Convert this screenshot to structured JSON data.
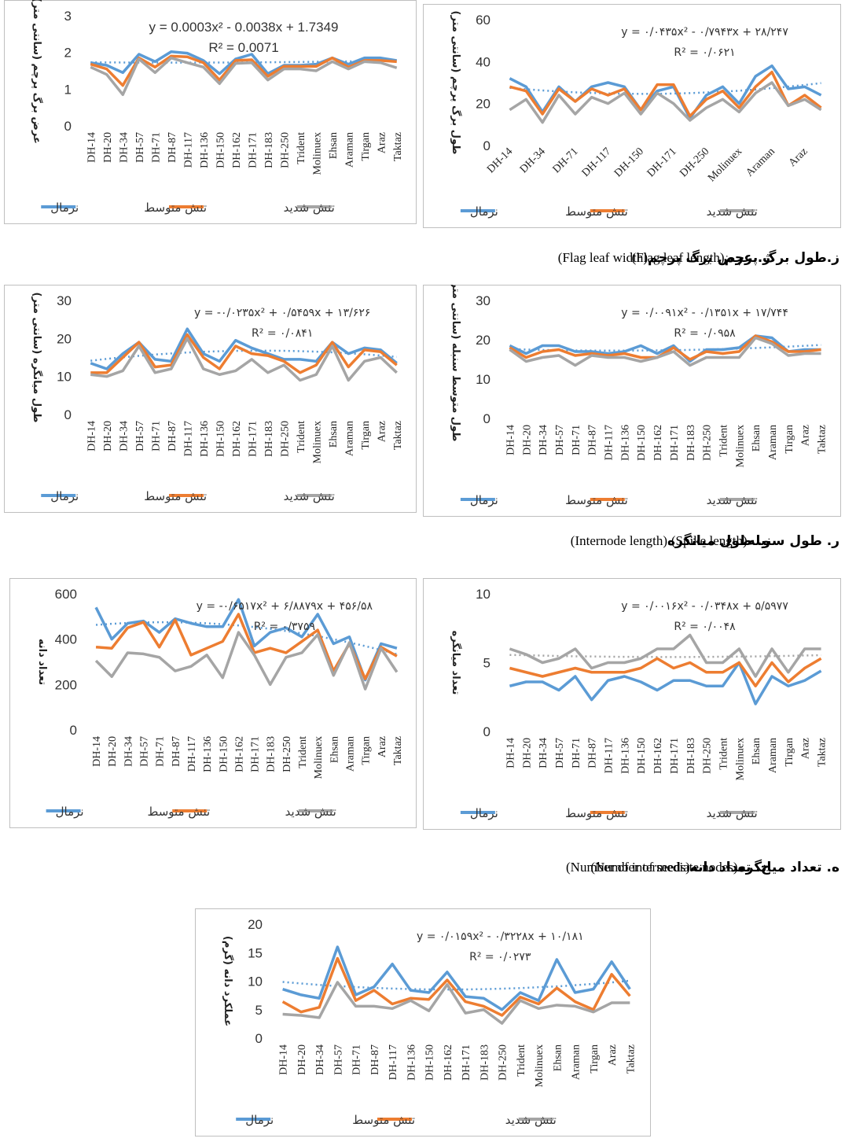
{
  "chart_data": [
    {
      "type": "line",
      "caption": "ژ. عرض برگ پرچم",
      "caption_en": "(Flag leaf width)",
      "y_label": "عرض برگ پرچم (سانتی متر)",
      "equation": "y = 0.0003x² - 0.0038x + 1.7349",
      "r_squared": "R² = 0.0071",
      "categories": [
        "DH-14",
        "DH-20",
        "DH-34",
        "DH-57",
        "DH-71",
        "DH-87",
        "DH-117",
        "DH-136",
        "DH-150",
        "DH-162",
        "DH-171",
        "DH-183",
        "DH-250",
        "Trident",
        "Molinuex",
        "Ehsan",
        "Araman",
        "Tirgan",
        "Araz",
        "Taktaz"
      ],
      "ylim": [
        0,
        3
      ],
      "yticks": [
        0,
        1,
        2,
        3
      ],
      "series": [
        {
          "name": "نرمال",
          "color": "#5b9bd5",
          "values": [
            1.72,
            1.65,
            1.45,
            1.95,
            1.75,
            2.02,
            1.98,
            1.78,
            1.42,
            1.82,
            1.95,
            1.42,
            1.65,
            1.65,
            1.68,
            1.85,
            1.68,
            1.85,
            1.85,
            1.78
          ]
        },
        {
          "name": "تنش متوسط",
          "color": "#ed7d31",
          "values": [
            1.68,
            1.55,
            1.1,
            1.85,
            1.6,
            1.9,
            1.88,
            1.72,
            1.25,
            1.78,
            1.8,
            1.35,
            1.62,
            1.62,
            1.62,
            1.85,
            1.6,
            1.78,
            1.78,
            1.75
          ]
        },
        {
          "name": "تنش شدید",
          "color": "#a5a5a5",
          "values": [
            1.6,
            1.4,
            0.85,
            1.82,
            1.45,
            1.85,
            1.72,
            1.6,
            1.15,
            1.7,
            1.72,
            1.25,
            1.55,
            1.55,
            1.5,
            1.75,
            1.55,
            1.75,
            1.72,
            1.58
          ]
        }
      ],
      "trend": {
        "color": "#5b9bd5",
        "values": [
          1.731,
          1.728,
          1.726,
          1.724,
          1.723,
          1.723,
          1.723,
          1.724,
          1.725,
          1.727,
          1.73,
          1.733,
          1.736,
          1.74,
          1.745,
          1.75,
          1.756,
          1.762,
          1.77,
          1.779
        ]
      }
    },
    {
      "type": "line",
      "caption": "ز.طول برگ پرچم",
      "caption_en": "(Flag leaf length)",
      "y_label": "طول برگ پرچم (سانتی متر)",
      "label_angle": -45,
      "equation": "y = ۰/۰۴۳۵x² - ۰/۷۹۴۳x + ۲۸/۲۴۷",
      "r_squared": "R² = ۰/۰۶۲۱",
      "categories": [
        "DH-14",
        null,
        "DH-34",
        null,
        "DH-71",
        null,
        "DH-117",
        null,
        "DH-150",
        null,
        "DH-171",
        null,
        "DH-250",
        null,
        "Molinuex",
        null,
        "Araman",
        null,
        "Araz",
        null
      ],
      "ylim": [
        0,
        60
      ],
      "yticks": [
        0,
        20,
        40,
        60
      ],
      "series": [
        {
          "name": "نرمال",
          "color": "#5b9bd5",
          "values": [
            32,
            28,
            16,
            28,
            21,
            28,
            30,
            28,
            17,
            26,
            28,
            13,
            24,
            28,
            20,
            33,
            38,
            27,
            28,
            24
          ]
        },
        {
          "name": "تنش متوسط",
          "color": "#ed7d31",
          "values": [
            28,
            26,
            15,
            27,
            21,
            27,
            24,
            27,
            17,
            29,
            29,
            14,
            22,
            26,
            18,
            28,
            35,
            19,
            24,
            18
          ]
        },
        {
          "name": "تنش شدید",
          "color": "#a5a5a5",
          "values": [
            17,
            22,
            11,
            24,
            15,
            23,
            20,
            25,
            15,
            25,
            20,
            12,
            18,
            22,
            16,
            25,
            30,
            19,
            22,
            17
          ]
        }
      ],
      "trend": {
        "color": "#5b9bd5",
        "values": [
          27.5,
          26.83,
          26.26,
          25.77,
          25.36,
          25.05,
          24.82,
          24.68,
          24.62,
          24.65,
          24.77,
          24.98,
          25.28,
          25.66,
          26.13,
          26.69,
          27.34,
          28.09,
          28.86,
          29.76
        ]
      }
    },
    {
      "type": "line",
      "caption": "و. طول میانگره",
      "caption_en": "(Internode length)",
      "y_label": "طول میانگره (سانتی متر)",
      "equation": "y = -۰/۰۲۳۵x² + ۰/۵۴۵۹x + ۱۳/۶۲۶",
      "r_squared": "R² = ۰/۰۸۴۱",
      "categories": [
        "DH-14",
        "DH-20",
        "DH-34",
        "DH-57",
        "DH-71",
        "DH-87",
        "DH-117",
        "DH-136",
        "DH-150",
        "DH-162",
        "DH-171",
        "DH-183",
        "DH-250",
        "Trident",
        "Molinuex",
        "Ehsan",
        "Araman",
        "Tirgan",
        "Araz",
        "Taktaz"
      ],
      "ylim": [
        0,
        30
      ],
      "yticks": [
        0,
        10,
        20,
        30
      ],
      "series": [
        {
          "name": "نرمال",
          "color": "#5b9bd5",
          "values": [
            13.5,
            12,
            16,
            19,
            14.5,
            14,
            22.5,
            16,
            14,
            19.5,
            17.5,
            16,
            14.5,
            14.5,
            14,
            19,
            16,
            17.5,
            17,
            13.5
          ]
        },
        {
          "name": "تنش متوسط",
          "color": "#ed7d31",
          "values": [
            11,
            11,
            15,
            19,
            12.5,
            13,
            21,
            15,
            12,
            18,
            16,
            15.5,
            14,
            11,
            13,
            19,
            12.5,
            17,
            16.5,
            13
          ]
        },
        {
          "name": "تنش شدید",
          "color": "#a5a5a5",
          "values": [
            10.5,
            10,
            11.5,
            18,
            11,
            12,
            20,
            12,
            10.5,
            11.5,
            14.5,
            11,
            13,
            9,
            10.5,
            18,
            9,
            14,
            15,
            11
          ]
        }
      ],
      "trend": {
        "color": "#5b9bd5",
        "values": [
          14.15,
          14.62,
          15.05,
          15.43,
          15.77,
          16.06,
          16.3,
          16.49,
          16.64,
          16.74,
          16.79,
          16.79,
          16.75,
          16.66,
          16.53,
          16.35,
          16.12,
          15.84,
          15.51,
          15.15
        ]
      }
    },
    {
      "type": "line",
      "caption": "ر. طول سنبله",
      "caption_en": "(Spike length)",
      "y_label": "طول متوسط سنبله (سانتی متر)",
      "equation": "y = ۰/۰۰۹۱x² - ۰/۱۳۵۱x + ۱۷/۷۴۴",
      "r_squared": "R² = ۰/۰۹۵۸",
      "categories": [
        "DH-14",
        "DH-20",
        "DH-34",
        "DH-57",
        "DH-71",
        "DH-87",
        "DH-117",
        "DH-136",
        "DH-150",
        "DH-162",
        "DH-171",
        "DH-183",
        "DH-250",
        "Trident",
        "Molinuex",
        "Ehsan",
        "Araman",
        "Tirgan",
        "Araz",
        "Taktaz"
      ],
      "ylim": [
        0,
        30
      ],
      "yticks": [
        0,
        10,
        20,
        30
      ],
      "series": [
        {
          "name": "نرمال",
          "color": "#5b9bd5",
          "values": [
            18.5,
            16.5,
            18.5,
            18.5,
            17,
            17,
            16.5,
            17,
            18.5,
            16.5,
            18.5,
            14.5,
            17.5,
            17.5,
            18,
            21,
            20.5,
            17,
            17.5,
            17.5
          ]
        },
        {
          "name": "تنش متوسط",
          "color": "#ed7d31",
          "values": [
            18,
            15.5,
            17,
            17.5,
            16,
            16.5,
            16,
            16.5,
            15.5,
            15.5,
            18,
            15,
            17,
            16.5,
            17,
            21,
            19.5,
            17,
            17,
            17.5
          ]
        },
        {
          "name": "تنش شدید",
          "color": "#a5a5a5",
          "values": [
            17.5,
            14.5,
            15.5,
            16,
            13.5,
            16,
            15.5,
            15.5,
            14.5,
            15.5,
            17,
            13.5,
            15.5,
            15.5,
            15.5,
            20.5,
            19,
            16,
            16.5,
            16.5
          ]
        }
      ],
      "trend": {
        "color": "#5b9bd5",
        "values": [
          17.62,
          17.51,
          17.42,
          17.35,
          17.29,
          17.26,
          17.24,
          17.24,
          17.27,
          17.3,
          17.36,
          17.43,
          17.51,
          17.63,
          17.77,
          17.91,
          18.07,
          18.26,
          18.46,
          18.68
        ]
      }
    },
    {
      "type": "line",
      "caption": "ج. تعداد دانه",
      "caption_en": "(Number of seeds)",
      "y_label": "تعداد دانه",
      "equation": "y = -۰/۶۵۱۷x² + ۶/۸۸۷۹x + ۴۵۶/۵۸",
      "r_squared": "R² = ۰/۳۷۵۹",
      "categories": [
        "DH-14",
        "DH-20",
        "DH-34",
        "DH-57",
        "DH-71",
        "DH-87",
        "DH-117",
        "DH-136",
        "DH-150",
        "DH-162",
        "DH-171",
        "DH-183",
        "DH-250",
        "Trident",
        "Molinuex",
        "Ehsan",
        "Araman",
        "Tirgan",
        "Araz",
        "Taktaz"
      ],
      "ylim": [
        0,
        600
      ],
      "yticks": [
        0,
        200,
        400,
        600
      ],
      "series": [
        {
          "name": "نرمال",
          "color": "#5b9bd5",
          "values": [
            540,
            400,
            470,
            480,
            430,
            490,
            470,
            455,
            455,
            575,
            370,
            430,
            450,
            410,
            510,
            380,
            410,
            220,
            380,
            360
          ]
        },
        {
          "name": "تنش متوسط",
          "color": "#ed7d31",
          "values": [
            365,
            360,
            450,
            475,
            365,
            485,
            330,
            360,
            390,
            510,
            340,
            360,
            340,
            390,
            440,
            260,
            380,
            225,
            365,
            325
          ]
        },
        {
          "name": "تنش شدید",
          "color": "#a5a5a5",
          "values": [
            305,
            235,
            340,
            335,
            320,
            260,
            280,
            330,
            230,
            430,
            330,
            200,
            320,
            340,
            420,
            240,
            385,
            180,
            360,
            255
          ]
        }
      ],
      "trend": {
        "color": "#5b9bd5",
        "values": [
          462.8,
          467.7,
          471.4,
          473.7,
          474.7,
          474.4,
          472.9,
          470,
          465.8,
          460.3,
          453.4,
          445.4,
          436,
          425.3,
          413.3,
          400,
          385.3,
          369.4,
          352.2,
          333.7
        ]
      }
    },
    {
      "type": "line",
      "caption": "ه. تعداد میانگره",
      "caption_en": "(Number of intermediate nodes)",
      "y_label": "تعداد میانگره",
      "equation": "y = ۰/۰۰۱۶x² - ۰/۰۳۴۸x + ۵/۵۹۷۷",
      "r_squared": "R² = ۰/۰۰۴۸",
      "categories": [
        "DH-14",
        "DH-20",
        "DH-34",
        "DH-57",
        "DH-71",
        "DH-87",
        "DH-117",
        "DH-136",
        "DH-150",
        "DH-162",
        "DH-171",
        "DH-183",
        "DH-250",
        "Trident",
        "Molinuex",
        "Ehsan",
        "Araman",
        "Tirgan",
        "Araz",
        "Taktaz"
      ],
      "ylim": [
        0,
        10
      ],
      "yticks": [
        0,
        5,
        10
      ],
      "series": [
        {
          "name": "نرمال",
          "color": "#5b9bd5",
          "values": [
            3.3,
            3.6,
            3.6,
            3,
            4,
            2.3,
            3.7,
            4,
            3.6,
            3,
            3.7,
            3.7,
            3.3,
            3.3,
            5,
            2,
            4,
            3.3,
            3.7,
            4.4
          ]
        },
        {
          "name": "تنش متوسط",
          "color": "#ed7d31",
          "values": [
            4.6,
            4.3,
            4,
            4.3,
            4.6,
            4.3,
            4.3,
            4.3,
            4.6,
            5.3,
            4.6,
            5,
            4.3,
            4.3,
            5,
            3.3,
            5,
            3.6,
            4.6,
            5.3
          ]
        },
        {
          "name": "تنش شدید",
          "color": "#a5a5a5",
          "values": [
            6,
            5.6,
            5,
            5.3,
            6,
            4.6,
            5,
            5,
            5.3,
            6,
            6,
            7,
            5,
            5,
            6,
            4,
            6,
            4.3,
            6,
            6
          ]
        }
      ],
      "trend": {
        "color": "#a5a5a5",
        "values": [
          5.56,
          5.54,
          5.51,
          5.48,
          5.46,
          5.45,
          5.43,
          5.42,
          5.42,
          5.41,
          5.41,
          5.41,
          5.42,
          5.43,
          5.44,
          5.45,
          5.47,
          5.49,
          5.52,
          5.54
        ]
      }
    },
    {
      "type": "line",
      "y_label": "عملکرد دانه (گرم)",
      "equation": "y = ۰/۰۱۵۹x² - ۰/۳۲۲۸x + ۱۰/۱۸۱",
      "r_squared": "R² = ۰/۰۲۷۳",
      "categories": [
        "DH-14",
        "DH-20",
        "DH-34",
        "DH-57",
        "DH-71",
        "DH-87",
        "DH-117",
        "DH-136",
        "DH-150",
        "DH-162",
        "DH-171",
        "DH-183",
        "DH-250",
        "Trident",
        "Molinuex",
        "Ehsan",
        "Araman",
        "Tirgan",
        "Araz",
        "Taktaz"
      ],
      "ylim": [
        0,
        20
      ],
      "yticks": [
        0,
        5,
        10,
        15,
        20
      ],
      "series": [
        {
          "name": "نرمال",
          "color": "#5b9bd5",
          "values": [
            8.6,
            7.6,
            7,
            16,
            7.6,
            9,
            13,
            8.4,
            8,
            11.6,
            7.3,
            7,
            5,
            8,
            6.6,
            13.8,
            8,
            8.6,
            13.4,
            8.6
          ]
        },
        {
          "name": "تنش متوسط",
          "color": "#ed7d31",
          "values": [
            6.4,
            4.6,
            5.4,
            14,
            6.6,
            8.4,
            6,
            7,
            6.8,
            10.2,
            6.4,
            5.6,
            4,
            7.2,
            6,
            8.8,
            6.4,
            5,
            11.2,
            7.4
          ]
        },
        {
          "name": "تنش شدید",
          "color": "#a5a5a5",
          "values": [
            4.2,
            4,
            3.6,
            9.8,
            5.6,
            5.6,
            5.2,
            6.6,
            4.8,
            9.4,
            4.4,
            5,
            2.6,
            6.6,
            5.2,
            5.8,
            5.6,
            4.6,
            6.2,
            6.2
          ]
        }
      ],
      "trend": {
        "color": "#5b9bd5",
        "values": [
          9.87,
          9.6,
          9.34,
          9.14,
          8.97,
          8.82,
          8.7,
          8.62,
          8.56,
          8.54,
          8.55,
          8.6,
          8.68,
          8.78,
          8.94,
          9.08,
          9.29,
          9.52,
          9.78,
          10.08
        ]
      }
    }
  ]
}
